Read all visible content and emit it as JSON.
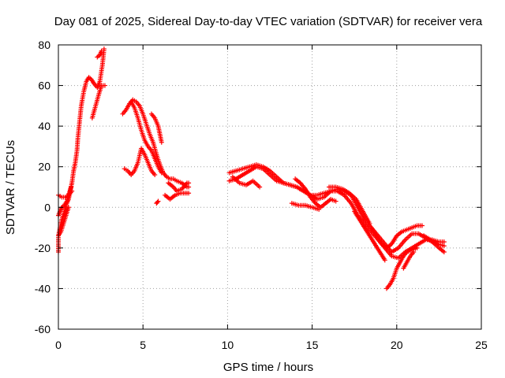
{
  "colors": {
    "series": "#ff0000",
    "grid": "#a0a0a0",
    "frame": "#000000",
    "background": "#ffffff"
  },
  "chart_data": {
    "type": "scatter",
    "marker": "plus",
    "title": "Day 081 of 2025, Sidereal Day-to-day VTEC variation (SDTVAR) for receiver vera",
    "xlabel": "GPS time / hours",
    "ylabel": "SDTVAR / TECUs",
    "xlim": [
      0,
      25
    ],
    "ylim": [
      -60,
      80
    ],
    "xticks": [
      0,
      5,
      10,
      15,
      20,
      25
    ],
    "yticks": [
      -60,
      -40,
      -20,
      0,
      20,
      40,
      60,
      80
    ],
    "grid": true,
    "legend": "none",
    "series": [
      {
        "name": "SDTVAR",
        "segments": [
          [
            [
              0.0,
              -22
            ],
            [
              0.0,
              -14
            ],
            [
              0.1,
              -10
            ],
            [
              0.2,
              -6
            ],
            [
              0.35,
              -2
            ],
            [
              0.5,
              2
            ],
            [
              0.6,
              4
            ],
            [
              0.7,
              8
            ],
            [
              0.8,
              12
            ],
            [
              0.9,
              18
            ],
            [
              1.0,
              22
            ],
            [
              1.1,
              28
            ],
            [
              1.15,
              34
            ],
            [
              1.25,
              42
            ],
            [
              1.35,
              50
            ],
            [
              1.5,
              57
            ],
            [
              1.65,
              62
            ],
            [
              1.8,
              64
            ],
            [
              1.95,
              63
            ],
            [
              2.1,
              61
            ],
            [
              2.3,
              59
            ],
            [
              2.45,
              62
            ],
            [
              2.6,
              70
            ],
            [
              2.7,
              78
            ]
          ],
          [
            [
              0.0,
              -4
            ],
            [
              0.1,
              -2
            ],
            [
              0.2,
              0
            ],
            [
              0.35,
              1
            ],
            [
              0.5,
              3
            ],
            [
              0.6,
              6
            ],
            [
              0.75,
              10
            ]
          ],
          [
            [
              0.0,
              6
            ],
            [
              0.2,
              5
            ],
            [
              0.4,
              5
            ],
            [
              0.6,
              6
            ],
            [
              0.8,
              8
            ]
          ],
          [
            [
              0.0,
              -14
            ],
            [
              0.15,
              -12
            ],
            [
              0.3,
              -8
            ],
            [
              0.45,
              -4
            ],
            [
              0.6,
              0
            ]
          ],
          [
            [
              2.0,
              44
            ],
            [
              2.2,
              50
            ],
            [
              2.4,
              56
            ],
            [
              2.55,
              60
            ],
            [
              2.75,
              60
            ]
          ],
          [
            [
              2.3,
              74
            ],
            [
              2.45,
              75
            ],
            [
              2.55,
              77
            ]
          ],
          [
            [
              3.8,
              46
            ],
            [
              4.0,
              48
            ],
            [
              4.2,
              51
            ],
            [
              4.4,
              53
            ],
            [
              4.6,
              52
            ],
            [
              4.8,
              50
            ],
            [
              5.0,
              46
            ],
            [
              5.2,
              41
            ],
            [
              5.4,
              36
            ],
            [
              5.6,
              32
            ],
            [
              5.8,
              26
            ],
            [
              6.0,
              21
            ],
            [
              6.2,
              17
            ],
            [
              6.4,
              15
            ],
            [
              6.6,
              14
            ],
            [
              6.8,
              14
            ],
            [
              7.0,
              13
            ],
            [
              7.3,
              12
            ],
            [
              7.6,
              10
            ],
            [
              7.7,
              10
            ]
          ],
          [
            [
              4.3,
              52
            ],
            [
              4.5,
              49
            ],
            [
              4.7,
              44
            ],
            [
              4.9,
              38
            ],
            [
              5.1,
              33
            ],
            [
              5.3,
              30
            ],
            [
              5.5,
              28
            ],
            [
              5.7,
              24
            ],
            [
              5.9,
              20
            ],
            [
              6.1,
              17
            ]
          ],
          [
            [
              5.5,
              46
            ],
            [
              5.7,
              44
            ],
            [
              5.9,
              40
            ],
            [
              6.0,
              36
            ],
            [
              6.1,
              32
            ]
          ],
          [
            [
              3.9,
              19
            ],
            [
              4.1,
              18
            ],
            [
              4.3,
              16
            ],
            [
              4.5,
              18
            ],
            [
              4.7,
              22
            ],
            [
              4.9,
              29
            ],
            [
              5.1,
              26
            ],
            [
              5.3,
              22
            ],
            [
              5.5,
              18
            ],
            [
              5.7,
              16
            ]
          ],
          [
            [
              5.8,
              2
            ],
            [
              5.9,
              3
            ]
          ],
          [
            [
              6.3,
              6
            ],
            [
              6.6,
              4
            ],
            [
              6.9,
              6
            ],
            [
              7.2,
              7
            ],
            [
              7.5,
              7
            ],
            [
              7.7,
              7
            ]
          ],
          [
            [
              6.5,
              12
            ],
            [
              6.8,
              10
            ],
            [
              7.0,
              8
            ],
            [
              7.3,
              9
            ],
            [
              7.6,
              12
            ],
            [
              7.7,
              12
            ]
          ],
          [
            [
              10.1,
              13
            ],
            [
              10.5,
              14
            ],
            [
              10.9,
              16
            ],
            [
              11.3,
              18
            ],
            [
              11.7,
              20
            ],
            [
              12.1,
              19
            ],
            [
              12.5,
              16
            ],
            [
              12.9,
              13
            ],
            [
              13.3,
              12
            ],
            [
              13.7,
              11
            ],
            [
              14.1,
              10
            ],
            [
              14.5,
              8
            ],
            [
              14.9,
              6
            ],
            [
              15.3,
              4
            ],
            [
              15.7,
              5
            ],
            [
              16.1,
              8
            ],
            [
              16.5,
              9
            ],
            [
              16.9,
              8
            ],
            [
              17.3,
              6
            ],
            [
              17.7,
              0
            ],
            [
              18.1,
              -6
            ],
            [
              18.5,
              -10
            ],
            [
              18.9,
              -14
            ],
            [
              19.3,
              -18
            ],
            [
              19.7,
              -22
            ],
            [
              20.1,
              -20
            ],
            [
              20.5,
              -16
            ],
            [
              20.9,
              -13
            ],
            [
              21.3,
              -13
            ],
            [
              21.7,
              -15
            ],
            [
              22.1,
              -17
            ],
            [
              22.5,
              -20
            ],
            [
              22.8,
              -22
            ]
          ],
          [
            [
              10.1,
              17
            ],
            [
              10.5,
              18
            ],
            [
              10.9,
              19
            ],
            [
              11.3,
              20
            ],
            [
              11.7,
              21
            ],
            [
              12.1,
              20
            ],
            [
              12.5,
              18
            ],
            [
              12.9,
              15
            ],
            [
              13.3,
              12
            ],
            [
              13.7,
              11
            ],
            [
              14.1,
              10
            ],
            [
              14.5,
              8
            ],
            [
              14.9,
              6
            ],
            [
              15.3,
              6
            ],
            [
              15.7,
              7
            ],
            [
              16.1,
              8
            ],
            [
              16.5,
              8
            ],
            [
              16.9,
              6
            ],
            [
              17.3,
              2
            ],
            [
              17.7,
              -4
            ],
            [
              18.1,
              -8
            ],
            [
              18.5,
              -12
            ],
            [
              18.9,
              -16
            ],
            [
              19.3,
              -20
            ],
            [
              19.7,
              -24
            ],
            [
              20.1,
              -25
            ],
            [
              20.5,
              -22
            ],
            [
              20.9,
              -20
            ],
            [
              21.3,
              -18
            ],
            [
              21.7,
              -16
            ],
            [
              22.1,
              -16
            ],
            [
              22.5,
              -17
            ],
            [
              22.8,
              -17
            ]
          ],
          [
            [
              10.3,
              15
            ],
            [
              10.7,
              12
            ],
            [
              11.1,
              11
            ],
            [
              11.5,
              13
            ],
            [
              11.9,
              10
            ]
          ],
          [
            [
              14.0,
              14
            ],
            [
              14.3,
              12
            ],
            [
              14.6,
              9
            ],
            [
              14.9,
              5
            ],
            [
              15.2,
              2
            ],
            [
              15.5,
              0
            ],
            [
              15.8,
              2
            ],
            [
              16.1,
              4
            ],
            [
              16.4,
              3
            ]
          ],
          [
            [
              13.8,
              2
            ],
            [
              14.2,
              1
            ],
            [
              14.6,
              1
            ],
            [
              15.0,
              0
            ],
            [
              15.4,
              -1
            ]
          ],
          [
            [
              16.0,
              10
            ],
            [
              16.4,
              10
            ],
            [
              16.8,
              9
            ],
            [
              17.2,
              7
            ],
            [
              17.6,
              4
            ],
            [
              18.0,
              -2
            ],
            [
              18.4,
              -8
            ]
          ],
          [
            [
              17.5,
              -2
            ],
            [
              17.8,
              -6
            ],
            [
              18.1,
              -10
            ],
            [
              18.4,
              -14
            ],
            [
              18.7,
              -18
            ],
            [
              19.0,
              -22
            ],
            [
              19.3,
              -26
            ]
          ],
          [
            [
              18.5,
              -10
            ],
            [
              18.8,
              -14
            ],
            [
              19.1,
              -18
            ],
            [
              19.4,
              -20
            ],
            [
              19.7,
              -18
            ],
            [
              20.0,
              -14
            ],
            [
              20.3,
              -12
            ],
            [
              20.6,
              -11
            ],
            [
              20.9,
              -10
            ],
            [
              21.2,
              -9
            ],
            [
              21.5,
              -9
            ]
          ],
          [
            [
              19.4,
              -40
            ],
            [
              19.6,
              -38
            ],
            [
              19.8,
              -35
            ],
            [
              20.0,
              -30
            ],
            [
              20.2,
              -27
            ],
            [
              20.4,
              -24
            ],
            [
              20.6,
              -22
            ],
            [
              20.9,
              -21
            ],
            [
              21.2,
              -20
            ]
          ],
          [
            [
              20.4,
              -30
            ],
            [
              20.6,
              -27
            ],
            [
              20.8,
              -24
            ],
            [
              21.0,
              -22
            ]
          ],
          [
            [
              21.6,
              -14
            ],
            [
              22.0,
              -16
            ],
            [
              22.4,
              -18
            ],
            [
              22.8,
              -19
            ]
          ]
        ]
      }
    ]
  }
}
